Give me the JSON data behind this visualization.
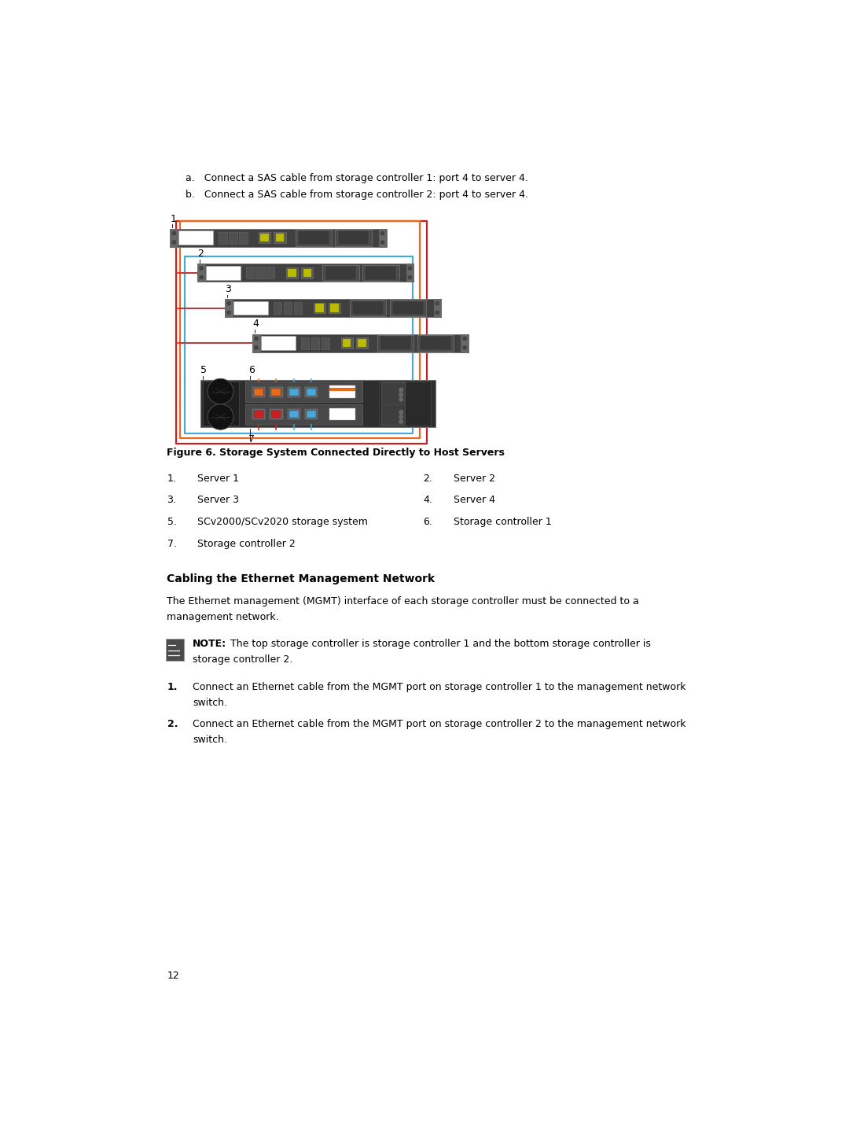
{
  "background_color": "#ffffff",
  "page_width": 10.8,
  "page_height": 14.34,
  "text_color": "#000000",
  "intro_lines": [
    "a.   Connect a SAS cable from storage controller 1: port 4 to server 4.",
    "b.   Connect a SAS cable from storage controller 2: port 4 to server 4."
  ],
  "figure_caption": "Figure 6. Storage System Connected Directly to Host Servers",
  "section_title": "Cabling the Ethernet Management Network",
  "body_text_line1": "The Ethernet management (MGMT) interface of each storage controller must be connected to a",
  "body_text_line2": "management network.",
  "note_label": "NOTE:",
  "note_line1": "The top storage controller is storage controller 1 and the bottom storage controller is",
  "note_line2": "storage controller 2.",
  "step1_line1": "Connect an Ethernet cable from the MGMT port on storage controller 1 to the management network",
  "step1_line2": "switch.",
  "step2_line1": "Connect an Ethernet cable from the MGMT port on storage controller 2 to the management network",
  "step2_line2": "switch.",
  "page_number": "12",
  "orange_color": "#e8691c",
  "blue_color": "#4aa8d8",
  "red_color": "#cc2020",
  "dark_color": "#3a3a3a",
  "medium_color": "#555555",
  "light_gray": "#888888",
  "rack_body": "#404040",
  "rack_ear": "#686868"
}
